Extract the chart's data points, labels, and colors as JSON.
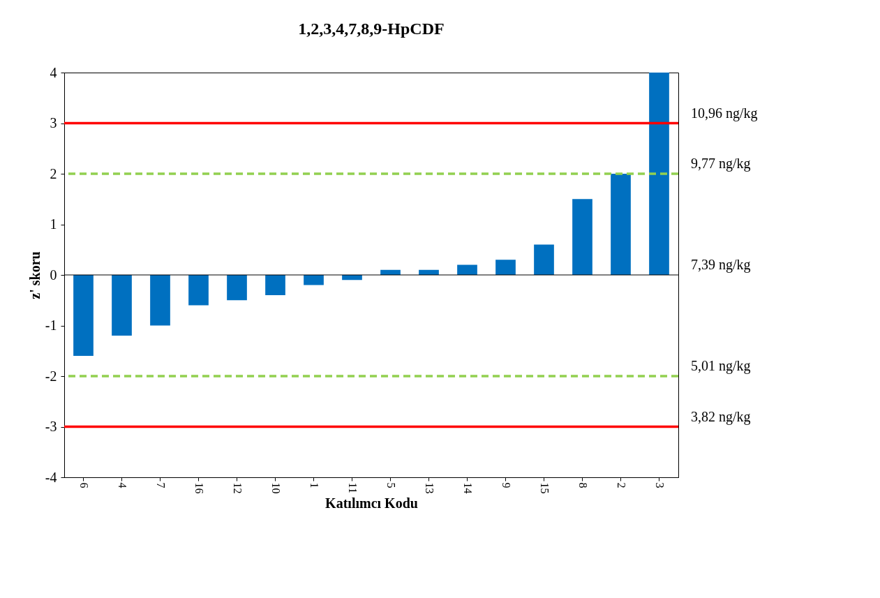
{
  "chart_data": {
    "type": "bar",
    "title": "1,2,3,4,7,8,9-HpCDF",
    "xlabel": "Katılımcı Kodu",
    "ylabel": "z' skoru",
    "categories": [
      "6",
      "4",
      "7",
      "16",
      "12",
      "10",
      "1",
      "11",
      "5",
      "13",
      "14",
      "9",
      "15",
      "8",
      "2",
      "3"
    ],
    "values": [
      -1.6,
      -1.2,
      -1.0,
      -0.6,
      -0.5,
      -0.4,
      -0.2,
      -0.1,
      0.1,
      0.1,
      0.2,
      0.3,
      0.6,
      1.5,
      2.0,
      4.0
    ],
    "color": "#0070c0",
    "ylim": [
      -4,
      4
    ],
    "yticks": [
      -4,
      -3,
      -2,
      -1,
      0,
      1,
      2,
      3,
      4
    ],
    "grid": false,
    "ref_lines": [
      {
        "axis": "y",
        "value": 3,
        "label": "10,96 ng/kg",
        "color": "#ff0000",
        "line_style": "solid"
      },
      {
        "axis": "y",
        "value": 2,
        "label": "9,77 ng/kg",
        "color": "#92d050",
        "line_style": "dashed"
      },
      {
        "axis": "y",
        "value": 0,
        "label": "7,39 ng/kg",
        "color": "#000000",
        "line_style": "solid"
      },
      {
        "axis": "y",
        "value": -2,
        "label": "5,01 ng/kg",
        "color": "#92d050",
        "line_style": "dashed"
      },
      {
        "axis": "y",
        "value": -3,
        "label": "3,82 ng/kg",
        "color": "#ff0000",
        "line_style": "solid"
      }
    ]
  }
}
